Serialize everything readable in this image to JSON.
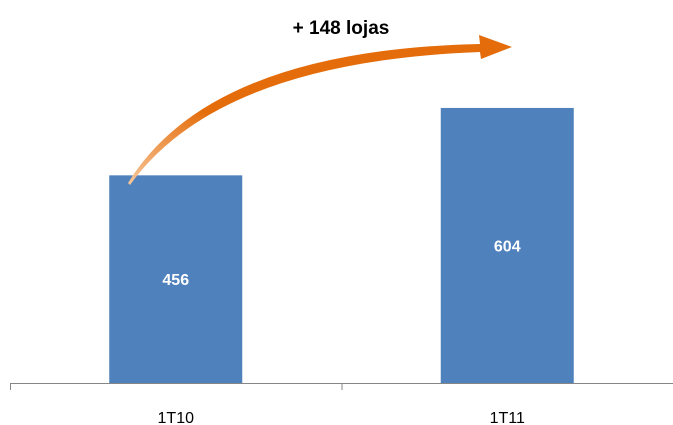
{
  "chart_data": {
    "type": "bar",
    "categories": [
      "1T10",
      "1T11"
    ],
    "values": [
      456,
      604
    ],
    "data_labels": [
      "456",
      "604"
    ],
    "annotation": "+ 148 lojas",
    "ylim": [
      0,
      650
    ],
    "grid": false,
    "legend": "none",
    "bar_color": "#4f81bd",
    "arrow_color": "#e46c0a"
  }
}
